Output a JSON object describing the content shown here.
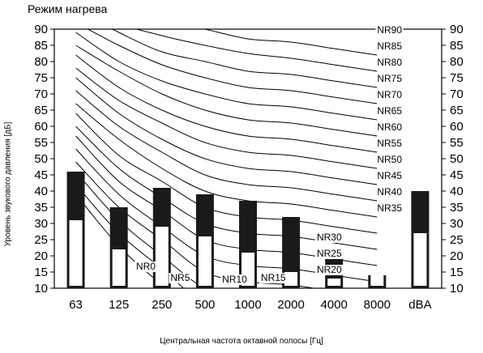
{
  "chart_data": {
    "type": "bar",
    "title": "Режим нагрева",
    "xlabel": "Центральная частота октавной полосы [Гц]",
    "ylabel": "Уровень звукового давления [дБ]",
    "ylim": [
      10,
      90
    ],
    "yticks": [
      10,
      15,
      20,
      25,
      30,
      35,
      40,
      45,
      50,
      55,
      60,
      65,
      70,
      75,
      80,
      85,
      90
    ],
    "grid": false,
    "categories": [
      "63",
      "125",
      "250",
      "500",
      "1000",
      "2000",
      "4000",
      "8000",
      "dBA"
    ],
    "series": [
      {
        "values": [
          46,
          35,
          41,
          39,
          37,
          32,
          22,
          14,
          40
        ],
        "color": "#1a1a1a"
      },
      {
        "values": [
          31,
          22,
          29,
          26,
          21,
          15,
          13,
          14,
          27
        ],
        "color": "#ffffff"
      }
    ],
    "nr_curves": [
      {
        "label": "NR90",
        "values": [
          103,
          96.5,
          93,
          90,
          87,
          86,
          84,
          82
        ]
      },
      {
        "label": "NR85",
        "values": [
          100,
          92,
          88,
          85,
          82.5,
          81,
          79,
          77
        ]
      },
      {
        "label": "NR80",
        "values": [
          96,
          89,
          83,
          80,
          77,
          76,
          74,
          72
        ]
      },
      {
        "label": "NR75",
        "values": [
          92,
          85,
          79,
          75,
          72,
          71,
          69,
          67
        ]
      },
      {
        "label": "NR70",
        "values": [
          89,
          80,
          74,
          70,
          67,
          66,
          64,
          62
        ]
      },
      {
        "label": "NR65",
        "values": [
          85,
          77,
          70,
          65,
          62,
          61,
          59,
          57
        ]
      },
      {
        "label": "NR60",
        "values": [
          82,
          72,
          65,
          60,
          57,
          56,
          54,
          52
        ]
      },
      {
        "label": "NR55",
        "values": [
          78,
          68,
          61,
          55,
          52,
          51,
          49,
          47
        ]
      },
      {
        "label": "NR50",
        "values": [
          75,
          64,
          56,
          50,
          47,
          46,
          44,
          42
        ]
      },
      {
        "label": "NR45",
        "values": [
          71,
          60,
          52,
          45,
          42,
          41,
          39,
          37
        ]
      },
      {
        "label": "NR40",
        "values": [
          67,
          56,
          47,
          40,
          37,
          36,
          34,
          32
        ]
      },
      {
        "label": "NR35",
        "values": [
          64,
          51,
          43,
          35,
          32,
          31,
          29,
          27
        ]
      },
      {
        "label": "NR30",
        "values": [
          60,
          47,
          38,
          30,
          27,
          26,
          24,
          22
        ]
      },
      {
        "label": "NR25",
        "values": [
          57,
          43,
          34,
          25,
          22,
          21,
          19,
          17
        ]
      },
      {
        "label": "NR20",
        "values": [
          53,
          39,
          29,
          20,
          17,
          16,
          14,
          12
        ]
      },
      {
        "label": "NR15",
        "values": [
          49,
          35,
          25,
          15,
          12,
          11,
          9,
          7
        ]
      },
      {
        "label": "NR10",
        "values": [
          46,
          31,
          20,
          10,
          7,
          6,
          4,
          2
        ]
      },
      {
        "label": "NR5",
        "values": [
          42,
          27,
          16,
          5,
          2,
          1,
          -1,
          -3
        ]
      },
      {
        "label": "NR0",
        "values": [
          39,
          23,
          11,
          0,
          -3,
          -4,
          -6,
          -8
        ]
      }
    ],
    "curve_labels": {
      "NR90": {
        "x": 7,
        "y": 89
      },
      "NR85": {
        "x": 7,
        "y": 84
      },
      "NR80": {
        "x": 7,
        "y": 79
      },
      "NR75": {
        "x": 7,
        "y": 74
      },
      "NR70": {
        "x": 7,
        "y": 69
      },
      "NR65": {
        "x": 7,
        "y": 64
      },
      "NR60": {
        "x": 7,
        "y": 59
      },
      "NR55": {
        "x": 7,
        "y": 54
      },
      "NR50": {
        "x": 7,
        "y": 49
      },
      "NR45": {
        "x": 7,
        "y": 44
      },
      "NR40": {
        "x": 7,
        "y": 39
      },
      "NR35": {
        "x": 7,
        "y": 34
      },
      "NR30": {
        "x": 5.6,
        "y": 25
      },
      "NR25": {
        "x": 5.6,
        "y": 20
      },
      "NR20": {
        "x": 5.6,
        "y": 15
      },
      "NR15": {
        "x": 4.3,
        "y": 12.5
      },
      "NR10": {
        "x": 3.4,
        "y": 12
      },
      "NR5": {
        "x": 2.2,
        "y": 12.5
      },
      "NR0": {
        "x": 1.4,
        "y": 16
      }
    }
  }
}
